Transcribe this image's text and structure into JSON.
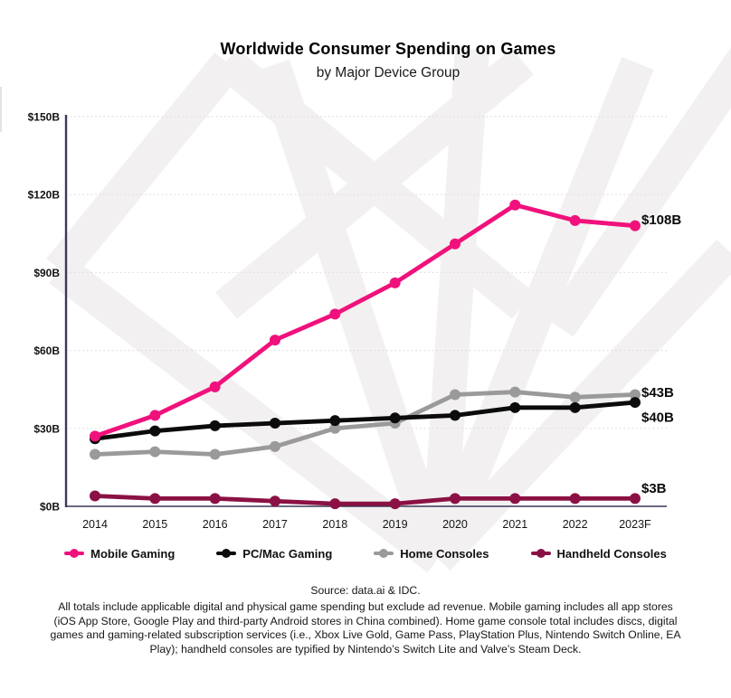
{
  "header": {
    "title": "Worldwide Consumer Spending on Games",
    "subtitle": "by Major Device Group"
  },
  "chart_data": {
    "type": "line",
    "title": "Worldwide Consumer Spending on Games",
    "subtitle": "by Major Device Group",
    "unit": "USD billions",
    "categories": [
      "2014",
      "2015",
      "2016",
      "2017",
      "2018",
      "2019",
      "2020",
      "2021",
      "2022",
      "2023F"
    ],
    "y_ticks": [
      {
        "value": 0,
        "label": "$0B"
      },
      {
        "value": 30,
        "label": "$30B"
      },
      {
        "value": 60,
        "label": "$60B"
      },
      {
        "value": 90,
        "label": "$90B"
      },
      {
        "value": 120,
        "label": "$120B"
      },
      {
        "value": 150,
        "label": "$150B"
      }
    ],
    "ylim": [
      0,
      150
    ],
    "grid": "horizontal-dotted",
    "legend_position": "bottom",
    "series": [
      {
        "name": "Mobile Gaming",
        "color": "#F0117C",
        "end_label": "$108B",
        "values": [
          27,
          35,
          46,
          64,
          74,
          86,
          101,
          116,
          110,
          108
        ]
      },
      {
        "name": "PC/Mac Gaming",
        "color": "#0B0B0B",
        "end_label": "$40B",
        "values": [
          26,
          29,
          31,
          32,
          33,
          34,
          35,
          38,
          38,
          40
        ]
      },
      {
        "name": "Home Consoles",
        "color": "#9A9A9A",
        "end_label": "$43B",
        "values": [
          20,
          21,
          20,
          23,
          30,
          32,
          43,
          44,
          42,
          43
        ]
      },
      {
        "name": "Handheld Consoles",
        "color": "#8B1144",
        "end_label": "$3B",
        "values": [
          4,
          3,
          3,
          2,
          1,
          1,
          3,
          3,
          3,
          3
        ]
      }
    ]
  },
  "colors": {
    "axis": "#3D3858",
    "grid": "#E4DCDC",
    "watermark": "#F2F0F0",
    "end_label_text": "#0B0B0B",
    "tick_text": "#141414"
  },
  "footer": {
    "source": "Source: data.ai & IDC.",
    "caption": "All totals include applicable digital and physical game spending but exclude ad revenue. Mobile gaming includes all app stores (iOS App Store, Google Play and third-party Android stores in China combined). Home game console total includes discs, digital games and gaming-related subscription services (i.e., Xbox Live Gold, Game Pass, PlayStation Plus, Nintendo Switch Online, EA Play); handheld consoles are typified by Nintendo’s Switch Lite and Valve’s Steam Deck."
  }
}
